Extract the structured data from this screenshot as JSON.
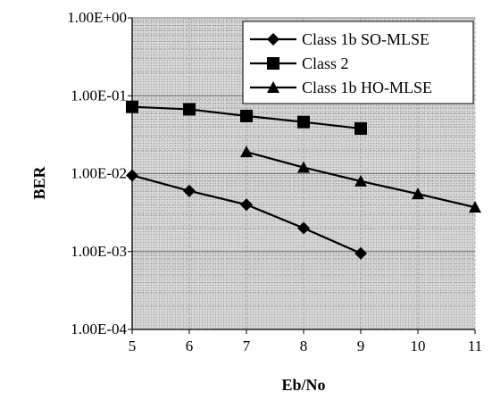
{
  "chart_data": {
    "type": "line",
    "title": "",
    "xlabel": "Eb/No",
    "ylabel": "BER",
    "x_ticks": [
      "5",
      "6",
      "7",
      "8",
      "9",
      "10",
      "11"
    ],
    "y_ticks": [
      "1.00E-04",
      "1.00E-03",
      "1.00E-02",
      "1.00E-01",
      "1.00E+00"
    ],
    "xlim": [
      5,
      11
    ],
    "ylim": [
      0.0001,
      1
    ],
    "y_scale": "log",
    "grid": true,
    "legend_position": "top-right",
    "series": [
      {
        "name": "Class 1b SO-MLSE",
        "marker": "diamond",
        "x": [
          5,
          6,
          7,
          8,
          9
        ],
        "y": [
          0.0095,
          0.006,
          0.004,
          0.002,
          0.00095
        ]
      },
      {
        "name": "Class 2",
        "marker": "square",
        "x": [
          5,
          6,
          7,
          8,
          9
        ],
        "y": [
          0.072,
          0.067,
          0.055,
          0.046,
          0.038
        ]
      },
      {
        "name": "Class 1b HO-MLSE",
        "marker": "triangle",
        "x": [
          7,
          8,
          9,
          10,
          11
        ],
        "y": [
          0.019,
          0.012,
          0.008,
          0.0055,
          0.0037
        ]
      }
    ],
    "colors": {
      "plot_background": "#c8c8c8",
      "gridline": "#a0a0a0",
      "line": "#000000"
    }
  }
}
